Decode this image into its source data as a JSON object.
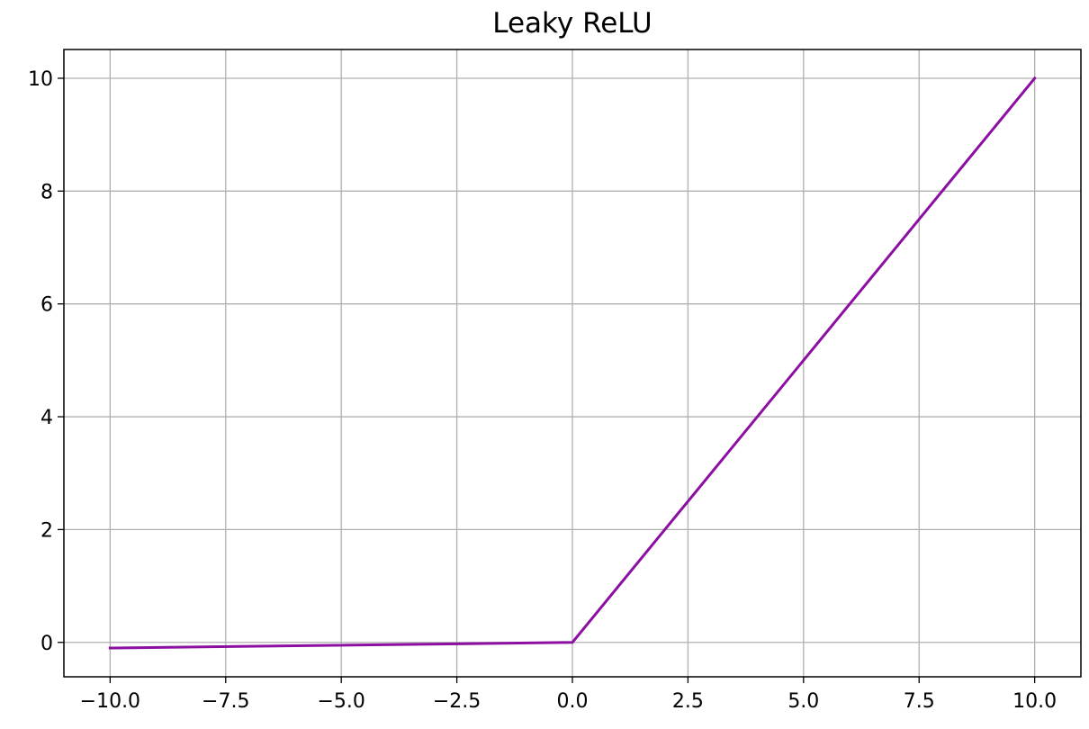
{
  "chart_data": {
    "type": "line",
    "title": "Leaky ReLU",
    "xlabel": "",
    "ylabel": "",
    "xlim": [
      -11.0,
      11.0
    ],
    "ylim": [
      -0.61,
      10.51
    ],
    "xticks": [
      -10.0,
      -7.5,
      -5.0,
      -2.5,
      0.0,
      2.5,
      5.0,
      7.5,
      10.0
    ],
    "xtick_labels": [
      "−10.0",
      "−7.5",
      "−5.0",
      "−2.5",
      "0.0",
      "2.5",
      "5.0",
      "7.5",
      "10.0"
    ],
    "yticks": [
      0,
      2,
      4,
      6,
      8,
      10
    ],
    "ytick_labels": [
      "0",
      "2",
      "4",
      "6",
      "8",
      "10"
    ],
    "grid": true,
    "series": [
      {
        "color": "#8b0fa0",
        "x": [
          -10.0,
          0.0,
          10.0
        ],
        "y": [
          -0.1,
          0.0,
          10.0
        ]
      }
    ]
  }
}
